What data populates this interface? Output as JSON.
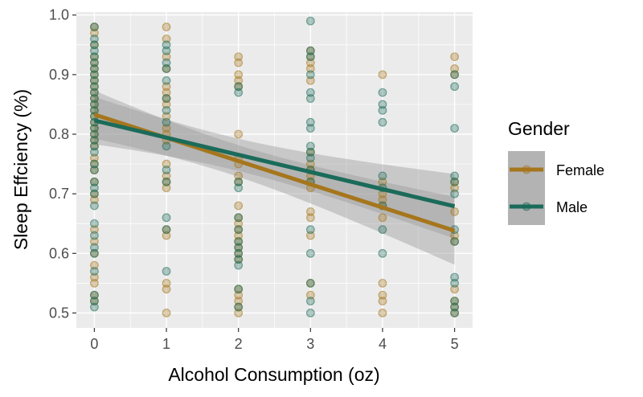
{
  "chart_data": {
    "type": "scatter",
    "xlabel": "Alcohol Consumption (oz)",
    "ylabel": "Sleep Effciency (%)",
    "xlim": [
      -0.25,
      5.25
    ],
    "ylim": [
      0.475,
      1.005
    ],
    "x_ticks": [
      0,
      1,
      2,
      3,
      4,
      5
    ],
    "y_ticks": [
      0.5,
      0.6,
      0.7,
      0.8,
      0.9,
      1.0
    ],
    "y_tick_labels": [
      "0.5",
      "0.6",
      "0.7",
      "0.8",
      "0.9",
      "1.0"
    ],
    "grid": true,
    "legend": {
      "title": "Gender",
      "position": "right"
    },
    "series": [
      {
        "name": "Female",
        "color": "#A6761D",
        "points": [
          [
            0,
            0.98
          ],
          [
            0,
            0.97
          ],
          [
            0,
            0.95
          ],
          [
            0,
            0.93
          ],
          [
            0,
            0.92
          ],
          [
            0,
            0.91
          ],
          [
            0,
            0.9
          ],
          [
            0,
            0.89
          ],
          [
            0,
            0.88
          ],
          [
            0,
            0.87
          ],
          [
            0,
            0.86
          ],
          [
            0,
            0.85
          ],
          [
            0,
            0.84
          ],
          [
            0,
            0.83
          ],
          [
            0,
            0.82
          ],
          [
            0,
            0.81
          ],
          [
            0,
            0.8
          ],
          [
            0,
            0.79
          ],
          [
            0,
            0.78
          ],
          [
            0,
            0.76
          ],
          [
            0,
            0.75
          ],
          [
            0,
            0.74
          ],
          [
            0,
            0.72
          ],
          [
            0,
            0.7
          ],
          [
            0,
            0.69
          ],
          [
            0,
            0.64
          ],
          [
            0,
            0.62
          ],
          [
            0,
            0.6
          ],
          [
            0,
            0.58
          ],
          [
            0,
            0.56
          ],
          [
            0,
            0.55
          ],
          [
            0,
            0.53
          ],
          [
            0,
            0.52
          ],
          [
            1,
            0.98
          ],
          [
            1,
            0.96
          ],
          [
            1,
            0.93
          ],
          [
            1,
            0.91
          ],
          [
            1,
            0.88
          ],
          [
            1,
            0.87
          ],
          [
            1,
            0.86
          ],
          [
            1,
            0.85
          ],
          [
            1,
            0.83
          ],
          [
            1,
            0.81
          ],
          [
            1,
            0.8
          ],
          [
            1,
            0.79
          ],
          [
            1,
            0.75
          ],
          [
            1,
            0.73
          ],
          [
            1,
            0.72
          ],
          [
            1,
            0.71
          ],
          [
            1,
            0.64
          ],
          [
            1,
            0.63
          ],
          [
            1,
            0.55
          ],
          [
            1,
            0.54
          ],
          [
            1,
            0.5
          ],
          [
            2,
            0.93
          ],
          [
            2,
            0.92
          ],
          [
            2,
            0.9
          ],
          [
            2,
            0.89
          ],
          [
            2,
            0.88
          ],
          [
            2,
            0.8
          ],
          [
            2,
            0.76
          ],
          [
            2,
            0.75
          ],
          [
            2,
            0.73
          ],
          [
            2,
            0.72
          ],
          [
            2,
            0.68
          ],
          [
            2,
            0.66
          ],
          [
            2,
            0.65
          ],
          [
            2,
            0.64
          ],
          [
            2,
            0.63
          ],
          [
            2,
            0.62
          ],
          [
            2,
            0.61
          ],
          [
            2,
            0.6
          ],
          [
            2,
            0.59
          ],
          [
            2,
            0.54
          ],
          [
            2,
            0.53
          ],
          [
            2,
            0.52
          ],
          [
            2,
            0.51
          ],
          [
            2,
            0.5
          ],
          [
            3,
            0.94
          ],
          [
            3,
            0.93
          ],
          [
            3,
            0.92
          ],
          [
            3,
            0.91
          ],
          [
            3,
            0.89
          ],
          [
            3,
            0.77
          ],
          [
            3,
            0.75
          ],
          [
            3,
            0.74
          ],
          [
            3,
            0.73
          ],
          [
            3,
            0.72
          ],
          [
            3,
            0.71
          ],
          [
            3,
            0.67
          ],
          [
            3,
            0.66
          ],
          [
            3,
            0.63
          ],
          [
            3,
            0.55
          ],
          [
            3,
            0.53
          ],
          [
            4,
            0.9
          ],
          [
            4,
            0.72
          ],
          [
            4,
            0.7
          ],
          [
            4,
            0.69
          ],
          [
            4,
            0.68
          ],
          [
            4,
            0.66
          ],
          [
            4,
            0.55
          ],
          [
            4,
            0.53
          ],
          [
            4,
            0.52
          ],
          [
            4,
            0.5
          ],
          [
            5,
            0.93
          ],
          [
            5,
            0.91
          ],
          [
            5,
            0.9
          ],
          [
            5,
            0.72
          ],
          [
            5,
            0.71
          ],
          [
            5,
            0.67
          ],
          [
            5,
            0.63
          ],
          [
            5,
            0.62
          ],
          [
            5,
            0.54
          ],
          [
            5,
            0.52
          ],
          [
            5,
            0.51
          ],
          [
            5,
            0.5
          ]
        ],
        "trend": {
          "x": [
            0,
            5
          ],
          "y": [
            0.833,
            0.638
          ]
        }
      },
      {
        "name": "Male",
        "color": "#1B6B5A",
        "points": [
          [
            0,
            0.98
          ],
          [
            0,
            0.96
          ],
          [
            0,
            0.95
          ],
          [
            0,
            0.94
          ],
          [
            0,
            0.93
          ],
          [
            0,
            0.92
          ],
          [
            0,
            0.91
          ],
          [
            0,
            0.9
          ],
          [
            0,
            0.89
          ],
          [
            0,
            0.88
          ],
          [
            0,
            0.87
          ],
          [
            0,
            0.86
          ],
          [
            0,
            0.85
          ],
          [
            0,
            0.84
          ],
          [
            0,
            0.83
          ],
          [
            0,
            0.82
          ],
          [
            0,
            0.81
          ],
          [
            0,
            0.8
          ],
          [
            0,
            0.79
          ],
          [
            0,
            0.78
          ],
          [
            0,
            0.77
          ],
          [
            0,
            0.75
          ],
          [
            0,
            0.74
          ],
          [
            0,
            0.72
          ],
          [
            0,
            0.71
          ],
          [
            0,
            0.7
          ],
          [
            0,
            0.68
          ],
          [
            0,
            0.65
          ],
          [
            0,
            0.63
          ],
          [
            0,
            0.61
          ],
          [
            0,
            0.6
          ],
          [
            0,
            0.57
          ],
          [
            0,
            0.53
          ],
          [
            0,
            0.52
          ],
          [
            0,
            0.51
          ],
          [
            1,
            0.95
          ],
          [
            1,
            0.94
          ],
          [
            1,
            0.92
          ],
          [
            1,
            0.91
          ],
          [
            1,
            0.89
          ],
          [
            1,
            0.86
          ],
          [
            1,
            0.84
          ],
          [
            1,
            0.82
          ],
          [
            1,
            0.78
          ],
          [
            1,
            0.74
          ],
          [
            1,
            0.72
          ],
          [
            1,
            0.66
          ],
          [
            1,
            0.64
          ],
          [
            1,
            0.57
          ],
          [
            2,
            0.88
          ],
          [
            2,
            0.87
          ],
          [
            2,
            0.72
          ],
          [
            2,
            0.71
          ],
          [
            2,
            0.66
          ],
          [
            2,
            0.64
          ],
          [
            2,
            0.62
          ],
          [
            2,
            0.61
          ],
          [
            2,
            0.6
          ],
          [
            2,
            0.59
          ],
          [
            2,
            0.58
          ],
          [
            2,
            0.54
          ],
          [
            2,
            0.51
          ],
          [
            3,
            0.99
          ],
          [
            3,
            0.94
          ],
          [
            3,
            0.93
          ],
          [
            3,
            0.9
          ],
          [
            3,
            0.87
          ],
          [
            3,
            0.86
          ],
          [
            3,
            0.82
          ],
          [
            3,
            0.81
          ],
          [
            3,
            0.78
          ],
          [
            3,
            0.77
          ],
          [
            3,
            0.76
          ],
          [
            3,
            0.74
          ],
          [
            3,
            0.72
          ],
          [
            3,
            0.64
          ],
          [
            3,
            0.6
          ],
          [
            3,
            0.55
          ],
          [
            3,
            0.52
          ],
          [
            3,
            0.5
          ],
          [
            4,
            0.87
          ],
          [
            4,
            0.85
          ],
          [
            4,
            0.84
          ],
          [
            4,
            0.82
          ],
          [
            4,
            0.73
          ],
          [
            4,
            0.71
          ],
          [
            4,
            0.68
          ],
          [
            4,
            0.64
          ],
          [
            4,
            0.6
          ],
          [
            5,
            0.9
          ],
          [
            5,
            0.88
          ],
          [
            5,
            0.81
          ],
          [
            5,
            0.73
          ],
          [
            5,
            0.72
          ],
          [
            5,
            0.7
          ],
          [
            5,
            0.64
          ],
          [
            5,
            0.62
          ],
          [
            5,
            0.56
          ],
          [
            5,
            0.55
          ],
          [
            5,
            0.52
          ],
          [
            5,
            0.51
          ],
          [
            5,
            0.5
          ]
        ],
        "trend": {
          "x": [
            0,
            5
          ],
          "y": [
            0.823,
            0.679
          ]
        }
      }
    ]
  }
}
